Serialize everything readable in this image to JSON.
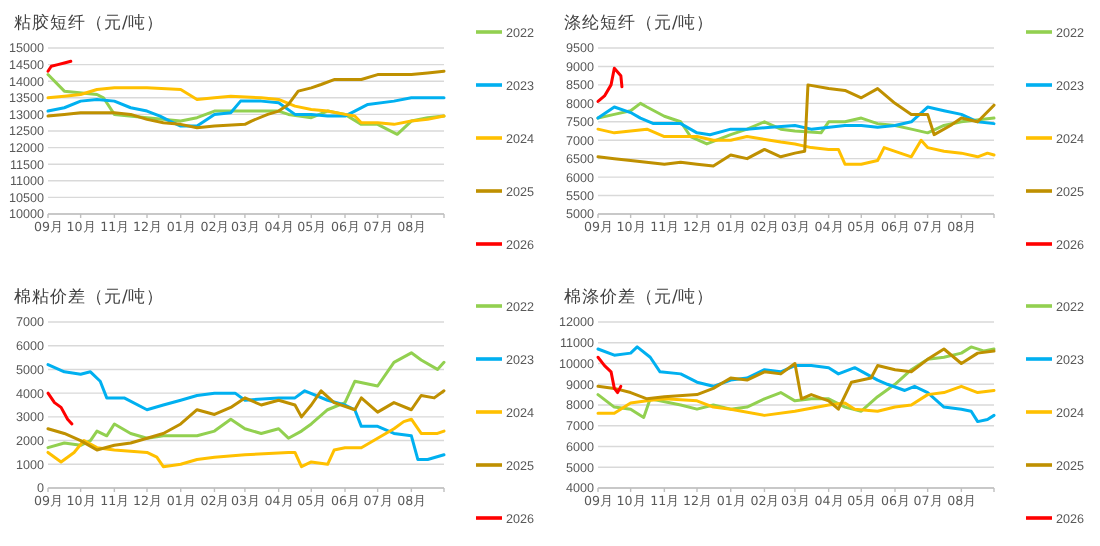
{
  "chart_data": [
    {
      "type": "line",
      "title": "粘胶短纤（元/吨）",
      "xlim": [
        "2025-09-01",
        "2026-08-31"
      ],
      "ylim": [
        10000,
        15000
      ],
      "grid": "y",
      "legend": "right",
      "xticks": [
        {
          "value": "2025-09-01",
          "label": "09月"
        },
        {
          "value": "2025-10-01",
          "label": "10月"
        },
        {
          "value": "2025-11-01",
          "label": "11月"
        },
        {
          "value": "2025-12-01",
          "label": "12月"
        },
        {
          "value": "2026-01-01",
          "label": "01月"
        },
        {
          "value": "2026-02-01",
          "label": "02月"
        },
        {
          "value": "2026-03-01",
          "label": "03月"
        },
        {
          "value": "2026-04-01",
          "label": "04月"
        },
        {
          "value": "2026-05-01",
          "label": "05月"
        },
        {
          "value": "2026-06-01",
          "label": "06月"
        },
        {
          "value": "2026-07-01",
          "label": "07月"
        },
        {
          "value": "2026-08-01",
          "label": "08月"
        }
      ],
      "yticks": [
        10000,
        10500,
        11000,
        11500,
        12000,
        12500,
        13000,
        13500,
        14000,
        14500,
        15000
      ],
      "series": [
        {
          "name": "2022",
          "color": "#92d050",
          "x": [
            "2025-09-01",
            "2025-09-16",
            "2025-10-16",
            "2025-10-22",
            "2025-11-01",
            "2025-12-01",
            "2026-01-01",
            "2026-01-16",
            "2026-02-01",
            "2026-03-01",
            "2026-04-01",
            "2026-04-10",
            "2026-05-01",
            "2026-05-16",
            "2026-06-01",
            "2026-06-16",
            "2026-07-01",
            "2026-07-19",
            "2026-08-01",
            "2026-08-16",
            "2026-08-31"
          ],
          "values": [
            14200,
            13700,
            13600,
            13500,
            13000,
            12900,
            12800,
            12900,
            13100,
            13100,
            13100,
            13000,
            12900,
            13100,
            13000,
            12700,
            12700,
            12400,
            12800,
            12900,
            12950
          ]
        },
        {
          "name": "2023",
          "color": "#00b0f0",
          "x": [
            "2025-09-01",
            "2025-09-16",
            "2025-10-01",
            "2025-10-16",
            "2025-11-01",
            "2025-11-16",
            "2025-12-01",
            "2025-12-13",
            "2025-12-22",
            "2026-01-01",
            "2026-01-16",
            "2026-02-01",
            "2026-02-16",
            "2026-02-25",
            "2026-03-16",
            "2026-04-01",
            "2026-04-16",
            "2026-05-01",
            "2026-05-16",
            "2026-06-01",
            "2026-06-10",
            "2026-06-22",
            "2026-07-16",
            "2026-08-01",
            "2026-08-31"
          ],
          "values": [
            13100,
            13200,
            13400,
            13450,
            13400,
            13200,
            13100,
            12950,
            12800,
            12650,
            12650,
            13000,
            13050,
            13400,
            13400,
            13350,
            13000,
            13000,
            12950,
            12950,
            13100,
            13300,
            13400,
            13500,
            13500
          ]
        },
        {
          "name": "2024",
          "color": "#ffc000",
          "x": [
            "2025-09-01",
            "2025-09-16",
            "2025-10-01",
            "2025-10-16",
            "2025-11-01",
            "2025-12-01",
            "2026-01-01",
            "2026-01-16",
            "2026-02-01",
            "2026-02-16",
            "2026-03-16",
            "2026-04-01",
            "2026-04-16",
            "2026-05-01",
            "2026-05-16",
            "2026-06-01",
            "2026-06-10",
            "2026-06-16",
            "2026-07-01",
            "2026-07-16",
            "2026-08-01",
            "2026-08-16",
            "2026-08-31"
          ],
          "values": [
            13500,
            13550,
            13600,
            13750,
            13800,
            13800,
            13750,
            13450,
            13500,
            13550,
            13500,
            13450,
            13250,
            13150,
            13100,
            13000,
            12950,
            12750,
            12750,
            12700,
            12800,
            12850,
            12950
          ]
        },
        {
          "name": "2025",
          "color": "#bf9000",
          "x": [
            "2025-09-01",
            "2025-09-16",
            "2025-10-01",
            "2025-11-01",
            "2025-11-16",
            "2025-12-01",
            "2025-12-16",
            "2026-01-01",
            "2026-01-16",
            "2026-02-01",
            "2026-03-01",
            "2026-03-07",
            "2026-03-22",
            "2026-04-01",
            "2026-04-10",
            "2026-04-19",
            "2026-05-01",
            "2026-05-10",
            "2026-05-22",
            "2026-06-16",
            "2026-07-01",
            "2026-08-01",
            "2026-08-16",
            "2026-08-31"
          ],
          "values": [
            12950,
            13000,
            13050,
            13050,
            13000,
            12850,
            12750,
            12700,
            12600,
            12650,
            12700,
            12800,
            13000,
            13100,
            13300,
            13700,
            13800,
            13900,
            14050,
            14050,
            14200,
            14200,
            14250,
            14300
          ]
        },
        {
          "name": "2026",
          "color": "#ff0000",
          "x": [
            "2025-09-01",
            "2025-09-04",
            "2025-09-10",
            "2025-09-16",
            "2025-09-22"
          ],
          "values": [
            14300,
            14450,
            14500,
            14550,
            14600
          ]
        }
      ]
    },
    {
      "type": "line",
      "title": "涤纶短纤（元/吨）",
      "xlim": [
        "2025-09-01",
        "2026-08-31"
      ],
      "ylim": [
        5000,
        9500
      ],
      "grid": "y",
      "legend": "right",
      "xticks": [
        {
          "value": "2025-09-01",
          "label": "09月"
        },
        {
          "value": "2025-10-01",
          "label": "10月"
        },
        {
          "value": "2025-11-01",
          "label": "11月"
        },
        {
          "value": "2025-12-01",
          "label": "12月"
        },
        {
          "value": "2026-01-01",
          "label": "01月"
        },
        {
          "value": "2026-02-01",
          "label": "02月"
        },
        {
          "value": "2026-03-01",
          "label": "03月"
        },
        {
          "value": "2026-04-01",
          "label": "04月"
        },
        {
          "value": "2026-05-01",
          "label": "05月"
        },
        {
          "value": "2026-06-01",
          "label": "06月"
        },
        {
          "value": "2026-07-01",
          "label": "07月"
        },
        {
          "value": "2026-08-01",
          "label": "08月"
        }
      ],
      "yticks": [
        5000,
        5500,
        6000,
        6500,
        7000,
        7500,
        8000,
        8500,
        9000,
        9500
      ],
      "series": [
        {
          "name": "2022",
          "color": "#92d050",
          "x": [
            "2025-09-01",
            "2025-09-16",
            "2025-10-01",
            "2025-10-10",
            "2025-10-16",
            "2025-11-01",
            "2025-11-16",
            "2025-11-25",
            "2025-12-10",
            "2026-01-01",
            "2026-01-16",
            "2026-02-01",
            "2026-02-16",
            "2026-03-01",
            "2026-03-25",
            "2026-04-01",
            "2026-04-16",
            "2026-05-01",
            "2026-05-16",
            "2026-06-01",
            "2026-06-16",
            "2026-07-01",
            "2026-07-16",
            "2026-08-01",
            "2026-08-31"
          ],
          "values": [
            7600,
            7700,
            7800,
            8000,
            7900,
            7650,
            7500,
            7100,
            6900,
            7150,
            7300,
            7500,
            7300,
            7250,
            7200,
            7500,
            7500,
            7600,
            7450,
            7400,
            7300,
            7200,
            7400,
            7500,
            7600
          ]
        },
        {
          "name": "2023",
          "color": "#00b0f0",
          "x": [
            "2025-09-01",
            "2025-09-16",
            "2025-10-01",
            "2025-10-10",
            "2025-10-22",
            "2025-11-16",
            "2025-12-01",
            "2025-12-13",
            "2026-01-01",
            "2026-01-16",
            "2026-02-07",
            "2026-03-01",
            "2026-03-16",
            "2026-04-16",
            "2026-05-01",
            "2026-05-16",
            "2026-06-01",
            "2026-06-16",
            "2026-07-01",
            "2026-07-16",
            "2026-08-01",
            "2026-08-16",
            "2026-08-31"
          ],
          "values": [
            7600,
            7900,
            7750,
            7600,
            7450,
            7450,
            7200,
            7150,
            7300,
            7300,
            7350,
            7400,
            7300,
            7400,
            7400,
            7350,
            7400,
            7500,
            7900,
            7800,
            7700,
            7500,
            7450
          ]
        },
        {
          "name": "2024",
          "color": "#ffc000",
          "x": [
            "2025-09-01",
            "2025-09-16",
            "2025-10-01",
            "2025-10-16",
            "2025-11-01",
            "2025-12-01",
            "2025-12-16",
            "2026-01-01",
            "2026-01-16",
            "2026-02-16",
            "2026-03-01",
            "2026-03-16",
            "2026-04-01",
            "2026-04-10",
            "2026-04-16",
            "2026-05-01",
            "2026-05-16",
            "2026-05-22",
            "2026-06-16",
            "2026-06-25",
            "2026-07-01",
            "2026-07-16",
            "2026-08-01",
            "2026-08-16",
            "2026-08-25",
            "2026-08-31"
          ],
          "values": [
            7300,
            7200,
            7250,
            7300,
            7100,
            7100,
            7000,
            7000,
            7100,
            6950,
            6900,
            6800,
            6750,
            6750,
            6350,
            6350,
            6450,
            6800,
            6550,
            7000,
            6800,
            6700,
            6650,
            6550,
            6650,
            6600
          ]
        },
        {
          "name": "2025",
          "color": "#bf9000",
          "x": [
            "2025-09-01",
            "2025-09-16",
            "2025-10-01",
            "2025-11-01",
            "2025-11-16",
            "2025-12-01",
            "2025-12-16",
            "2026-01-01",
            "2026-01-16",
            "2026-02-01",
            "2026-02-16",
            "2026-03-01",
            "2026-03-10",
            "2026-03-13",
            "2026-04-01",
            "2026-04-16",
            "2026-05-01",
            "2026-05-16",
            "2026-06-01",
            "2026-06-16",
            "2026-07-01",
            "2026-07-07",
            "2026-07-22",
            "2026-08-01",
            "2026-08-16",
            "2026-08-31"
          ],
          "values": [
            6550,
            6500,
            6450,
            6350,
            6400,
            6350,
            6300,
            6600,
            6500,
            6750,
            6550,
            6650,
            6700,
            8500,
            8400,
            8350,
            8150,
            8400,
            8000,
            7700,
            7700,
            7150,
            7400,
            7600,
            7500,
            7950
          ]
        },
        {
          "name": "2026",
          "color": "#ff0000",
          "x": [
            "2025-09-01",
            "2025-09-07",
            "2025-09-13",
            "2025-09-16",
            "2025-09-22",
            "2025-09-23"
          ],
          "values": [
            8050,
            8200,
            8500,
            8950,
            8750,
            8450
          ]
        }
      ]
    },
    {
      "type": "line",
      "title": "棉粘价差（元/吨）",
      "xlim": [
        "2025-09-01",
        "2026-08-31"
      ],
      "ylim": [
        0,
        7000
      ],
      "grid": "y",
      "legend": "right",
      "xticks": [
        {
          "value": "2025-09-01",
          "label": "09月"
        },
        {
          "value": "2025-10-01",
          "label": "10月"
        },
        {
          "value": "2025-11-01",
          "label": "11月"
        },
        {
          "value": "2025-12-01",
          "label": "12月"
        },
        {
          "value": "2026-01-01",
          "label": "01月"
        },
        {
          "value": "2026-02-01",
          "label": "02月"
        },
        {
          "value": "2026-03-01",
          "label": "03月"
        },
        {
          "value": "2026-04-01",
          "label": "04月"
        },
        {
          "value": "2026-05-01",
          "label": "05月"
        },
        {
          "value": "2026-06-01",
          "label": "06月"
        },
        {
          "value": "2026-07-01",
          "label": "07月"
        },
        {
          "value": "2026-08-01",
          "label": "08月"
        }
      ],
      "yticks": [
        0,
        1000,
        2000,
        3000,
        4000,
        5000,
        6000,
        7000
      ],
      "series": [
        {
          "name": "2022",
          "color": "#92d050",
          "x": [
            "2025-09-01",
            "2025-09-16",
            "2025-10-01",
            "2025-10-10",
            "2025-10-16",
            "2025-10-25",
            "2025-11-01",
            "2025-11-16",
            "2025-12-01",
            "2025-12-16",
            "2026-01-16",
            "2026-02-01",
            "2026-02-16",
            "2026-03-01",
            "2026-03-16",
            "2026-04-01",
            "2026-04-10",
            "2026-04-22",
            "2026-05-01",
            "2026-05-16",
            "2026-06-01",
            "2026-06-10",
            "2026-07-01",
            "2026-07-16",
            "2026-08-01",
            "2026-08-10",
            "2026-08-25",
            "2026-08-31"
          ],
          "values": [
            1700,
            1900,
            1800,
            2000,
            2400,
            2200,
            2700,
            2300,
            2100,
            2200,
            2200,
            2400,
            2900,
            2500,
            2300,
            2500,
            2100,
            2400,
            2700,
            3300,
            3600,
            4500,
            4300,
            5300,
            5700,
            5400,
            5000,
            5300
          ]
        },
        {
          "name": "2023",
          "color": "#00b0f0",
          "x": [
            "2025-09-01",
            "2025-09-16",
            "2025-10-01",
            "2025-10-10",
            "2025-10-19",
            "2025-10-25",
            "2025-11-10",
            "2025-12-01",
            "2025-12-16",
            "2026-01-01",
            "2026-01-16",
            "2026-02-01",
            "2026-02-20",
            "2026-03-01",
            "2026-04-01",
            "2026-04-16",
            "2026-04-25",
            "2026-05-16",
            "2026-06-01",
            "2026-06-10",
            "2026-06-16",
            "2026-07-01",
            "2026-07-16",
            "2026-08-01",
            "2026-08-07",
            "2026-08-16",
            "2026-08-31"
          ],
          "values": [
            5200,
            4900,
            4800,
            4900,
            4500,
            3800,
            3800,
            3300,
            3500,
            3700,
            3900,
            4000,
            4000,
            3700,
            3800,
            3800,
            4100,
            3700,
            3500,
            3300,
            2600,
            2600,
            2300,
            2200,
            1200,
            1200,
            1400
          ]
        },
        {
          "name": "2024",
          "color": "#ffc000",
          "x": [
            "2025-09-01",
            "2025-09-13",
            "2025-09-25",
            "2025-10-04",
            "2025-10-16",
            "2025-11-01",
            "2025-12-01",
            "2025-12-10",
            "2025-12-16",
            "2026-01-01",
            "2026-01-16",
            "2026-02-01",
            "2026-03-01",
            "2026-04-10",
            "2026-04-16",
            "2026-04-22",
            "2026-05-01",
            "2026-05-16",
            "2026-05-22",
            "2026-06-01",
            "2026-06-16",
            "2026-07-01",
            "2026-07-16",
            "2026-07-25",
            "2026-08-01",
            "2026-08-10",
            "2026-08-25",
            "2026-08-31"
          ],
          "values": [
            1500,
            1100,
            1500,
            2000,
            1700,
            1600,
            1500,
            1300,
            900,
            1000,
            1200,
            1300,
            1400,
            1500,
            1500,
            900,
            1100,
            1000,
            1600,
            1700,
            1700,
            2100,
            2500,
            2800,
            2900,
            2300,
            2300,
            2400
          ]
        },
        {
          "name": "2025",
          "color": "#bf9000",
          "x": [
            "2025-09-01",
            "2025-09-16",
            "2025-10-01",
            "2025-10-16",
            "2025-11-01",
            "2025-11-16",
            "2025-12-01",
            "2025-12-16",
            "2026-01-01",
            "2026-01-16",
            "2026-02-01",
            "2026-02-16",
            "2026-03-01",
            "2026-03-16",
            "2026-04-01",
            "2026-04-16",
            "2026-04-22",
            "2026-05-01",
            "2026-05-10",
            "2026-05-22",
            "2026-06-10",
            "2026-06-16",
            "2026-07-01",
            "2026-07-16",
            "2026-08-01",
            "2026-08-10",
            "2026-08-22",
            "2026-08-31"
          ],
          "values": [
            2500,
            2300,
            2000,
            1600,
            1800,
            1900,
            2100,
            2300,
            2700,
            3300,
            3100,
            3400,
            3800,
            3500,
            3700,
            3500,
            3000,
            3500,
            4100,
            3600,
            3300,
            3800,
            3200,
            3600,
            3300,
            3900,
            3800,
            4100
          ]
        },
        {
          "name": "2026",
          "color": "#ff0000",
          "x": [
            "2025-09-01",
            "2025-09-07",
            "2025-09-13",
            "2025-09-19",
            "2025-09-23"
          ],
          "values": [
            4000,
            3600,
            3400,
            2900,
            2700
          ]
        }
      ]
    },
    {
      "type": "line",
      "title": "棉涤价差（元/吨）",
      "xlim": [
        "2025-09-01",
        "2026-08-31"
      ],
      "ylim": [
        4000,
        12000
      ],
      "grid": "y",
      "legend": "right",
      "xticks": [
        {
          "value": "2025-09-01",
          "label": "09月"
        },
        {
          "value": "2025-10-01",
          "label": "10月"
        },
        {
          "value": "2025-11-01",
          "label": "11月"
        },
        {
          "value": "2025-12-01",
          "label": "12月"
        },
        {
          "value": "2026-01-01",
          "label": "01月"
        },
        {
          "value": "2026-02-01",
          "label": "02月"
        },
        {
          "value": "2026-03-01",
          "label": "03月"
        },
        {
          "value": "2026-04-01",
          "label": "04月"
        },
        {
          "value": "2026-05-01",
          "label": "05月"
        },
        {
          "value": "2026-06-01",
          "label": "06月"
        },
        {
          "value": "2026-07-01",
          "label": "07月"
        },
        {
          "value": "2026-08-01",
          "label": "08月"
        }
      ],
      "yticks": [
        4000,
        5000,
        6000,
        7000,
        8000,
        9000,
        10000,
        11000,
        12000
      ],
      "series": [
        {
          "name": "2022",
          "color": "#92d050",
          "x": [
            "2025-09-01",
            "2025-09-16",
            "2025-10-01",
            "2025-10-13",
            "2025-10-19",
            "2025-11-16",
            "2025-12-01",
            "2025-12-16",
            "2026-01-01",
            "2026-01-16",
            "2026-02-01",
            "2026-02-16",
            "2026-03-01",
            "2026-03-16",
            "2026-04-01",
            "2026-04-16",
            "2026-05-01",
            "2026-05-16",
            "2026-06-01",
            "2026-06-16",
            "2026-07-01",
            "2026-07-16",
            "2026-08-01",
            "2026-08-10",
            "2026-08-22",
            "2026-08-31"
          ],
          "values": [
            8500,
            7900,
            7800,
            7400,
            8300,
            8000,
            7800,
            8000,
            7800,
            7900,
            8300,
            8600,
            8200,
            8300,
            8300,
            7900,
            7700,
            8400,
            9000,
            9700,
            10200,
            10300,
            10500,
            10800,
            10600,
            10700
          ]
        },
        {
          "name": "2023",
          "color": "#00b0f0",
          "x": [
            "2025-09-01",
            "2025-09-16",
            "2025-10-01",
            "2025-10-07",
            "2025-10-19",
            "2025-10-28",
            "2025-11-16",
            "2025-12-01",
            "2025-12-16",
            "2026-01-01",
            "2026-01-16",
            "2026-02-01",
            "2026-02-16",
            "2026-03-01",
            "2026-03-16",
            "2026-04-01",
            "2026-04-10",
            "2026-04-25",
            "2026-05-16",
            "2026-05-25",
            "2026-06-10",
            "2026-06-19",
            "2026-07-01",
            "2026-07-16",
            "2026-08-01",
            "2026-08-10",
            "2026-08-16",
            "2026-08-25",
            "2026-08-31"
          ],
          "values": [
            10700,
            10400,
            10500,
            10800,
            10300,
            9600,
            9500,
            9100,
            8900,
            9200,
            9300,
            9700,
            9600,
            9900,
            9900,
            9800,
            9500,
            9800,
            9200,
            9000,
            8700,
            8900,
            8600,
            7900,
            7800,
            7700,
            7200,
            7300,
            7500
          ]
        },
        {
          "name": "2024",
          "color": "#ffc000",
          "x": [
            "2025-09-01",
            "2025-09-16",
            "2025-10-01",
            "2025-10-16",
            "2025-11-01",
            "2025-12-01",
            "2025-12-16",
            "2026-01-01",
            "2026-02-01",
            "2026-03-01",
            "2026-04-01",
            "2026-04-16",
            "2026-04-25",
            "2026-05-16",
            "2026-06-01",
            "2026-06-16",
            "2026-07-01",
            "2026-07-16",
            "2026-08-01",
            "2026-08-16",
            "2026-08-31"
          ],
          "values": [
            7600,
            7600,
            8100,
            8200,
            8300,
            8200,
            7900,
            7800,
            7500,
            7700,
            8000,
            8100,
            7800,
            7700,
            7900,
            8000,
            8500,
            8600,
            8900,
            8600,
            8700
          ]
        },
        {
          "name": "2025",
          "color": "#bf9000",
          "x": [
            "2025-09-01",
            "2025-09-16",
            "2025-10-01",
            "2025-10-16",
            "2025-11-01",
            "2025-12-01",
            "2025-12-16",
            "2026-01-01",
            "2026-01-16",
            "2026-02-01",
            "2026-02-16",
            "2026-03-01",
            "2026-03-07",
            "2026-03-16",
            "2026-04-01",
            "2026-04-10",
            "2026-04-22",
            "2026-05-10",
            "2026-05-16",
            "2026-06-01",
            "2026-06-16",
            "2026-07-01",
            "2026-07-16",
            "2026-08-01",
            "2026-08-16",
            "2026-08-31"
          ],
          "values": [
            8900,
            8800,
            8600,
            8300,
            8400,
            8500,
            8800,
            9300,
            9200,
            9600,
            9500,
            10000,
            8300,
            8500,
            8200,
            7800,
            9100,
            9300,
            9900,
            9700,
            9600,
            10200,
            10700,
            10000,
            10500,
            10600
          ]
        },
        {
          "name": "2026",
          "color": "#ff0000",
          "x": [
            "2025-09-01",
            "2025-09-07",
            "2025-09-13",
            "2025-09-16",
            "2025-09-19",
            "2025-09-22"
          ],
          "values": [
            10300,
            9900,
            9600,
            8800,
            8600,
            8900
          ]
        }
      ]
    }
  ]
}
